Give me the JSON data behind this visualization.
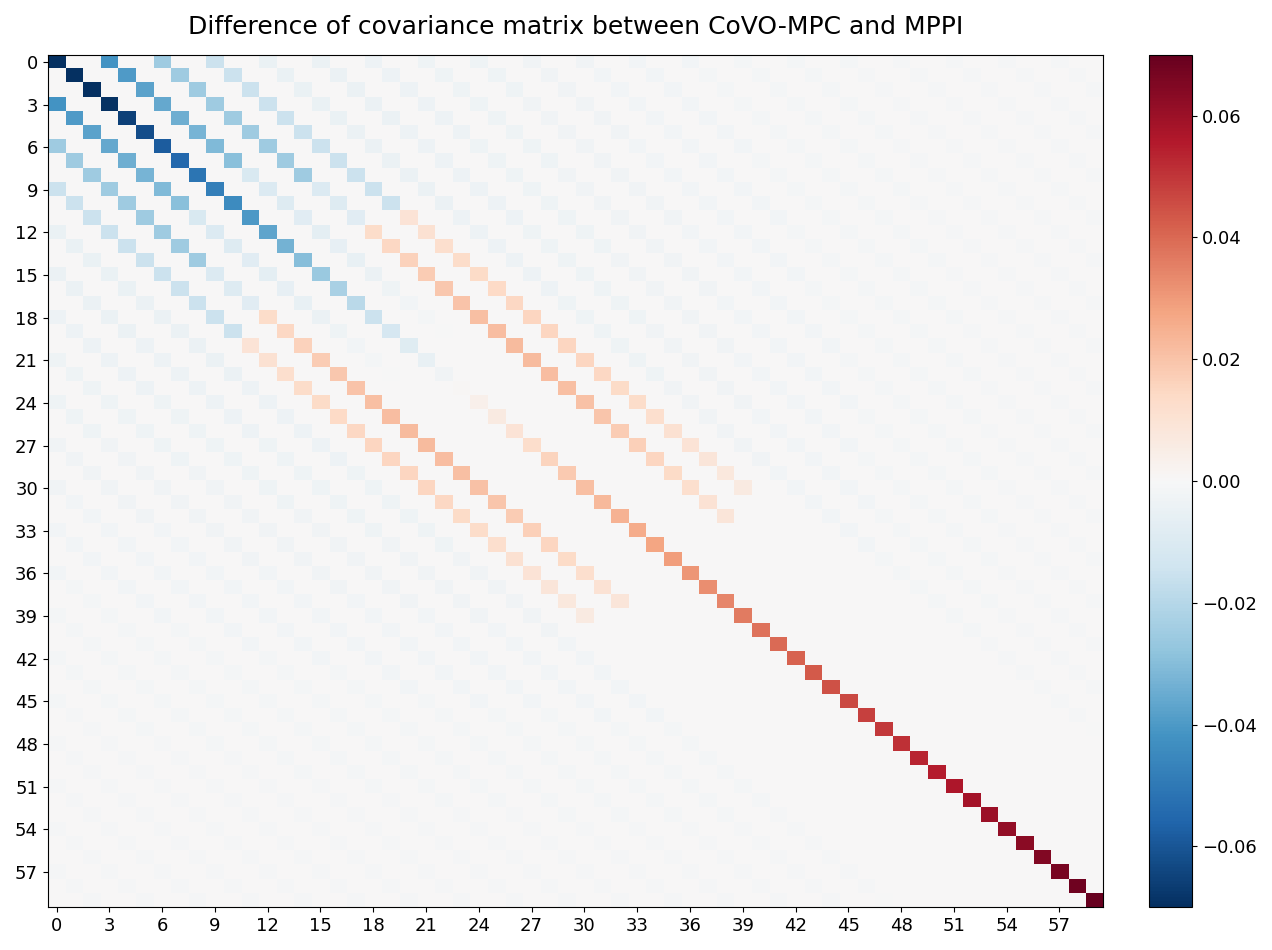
{
  "title": "Difference of covariance matrix between CoVO-MPC and MPPI",
  "n": 60,
  "vmin": -0.07,
  "vmax": 0.07,
  "cmap": "RdBu_r",
  "tick_step": 3,
  "colorbar_ticks": [
    -0.06,
    -0.04,
    -0.02,
    0.0,
    0.02,
    0.04,
    0.06
  ],
  "colorbar_ticklabels": [
    "−0.06",
    "−0.04",
    "−0.02",
    "0.00",
    "0.02",
    "0.04",
    "0.06"
  ],
  "title_fontsize": 18,
  "tick_fontsize": 13
}
